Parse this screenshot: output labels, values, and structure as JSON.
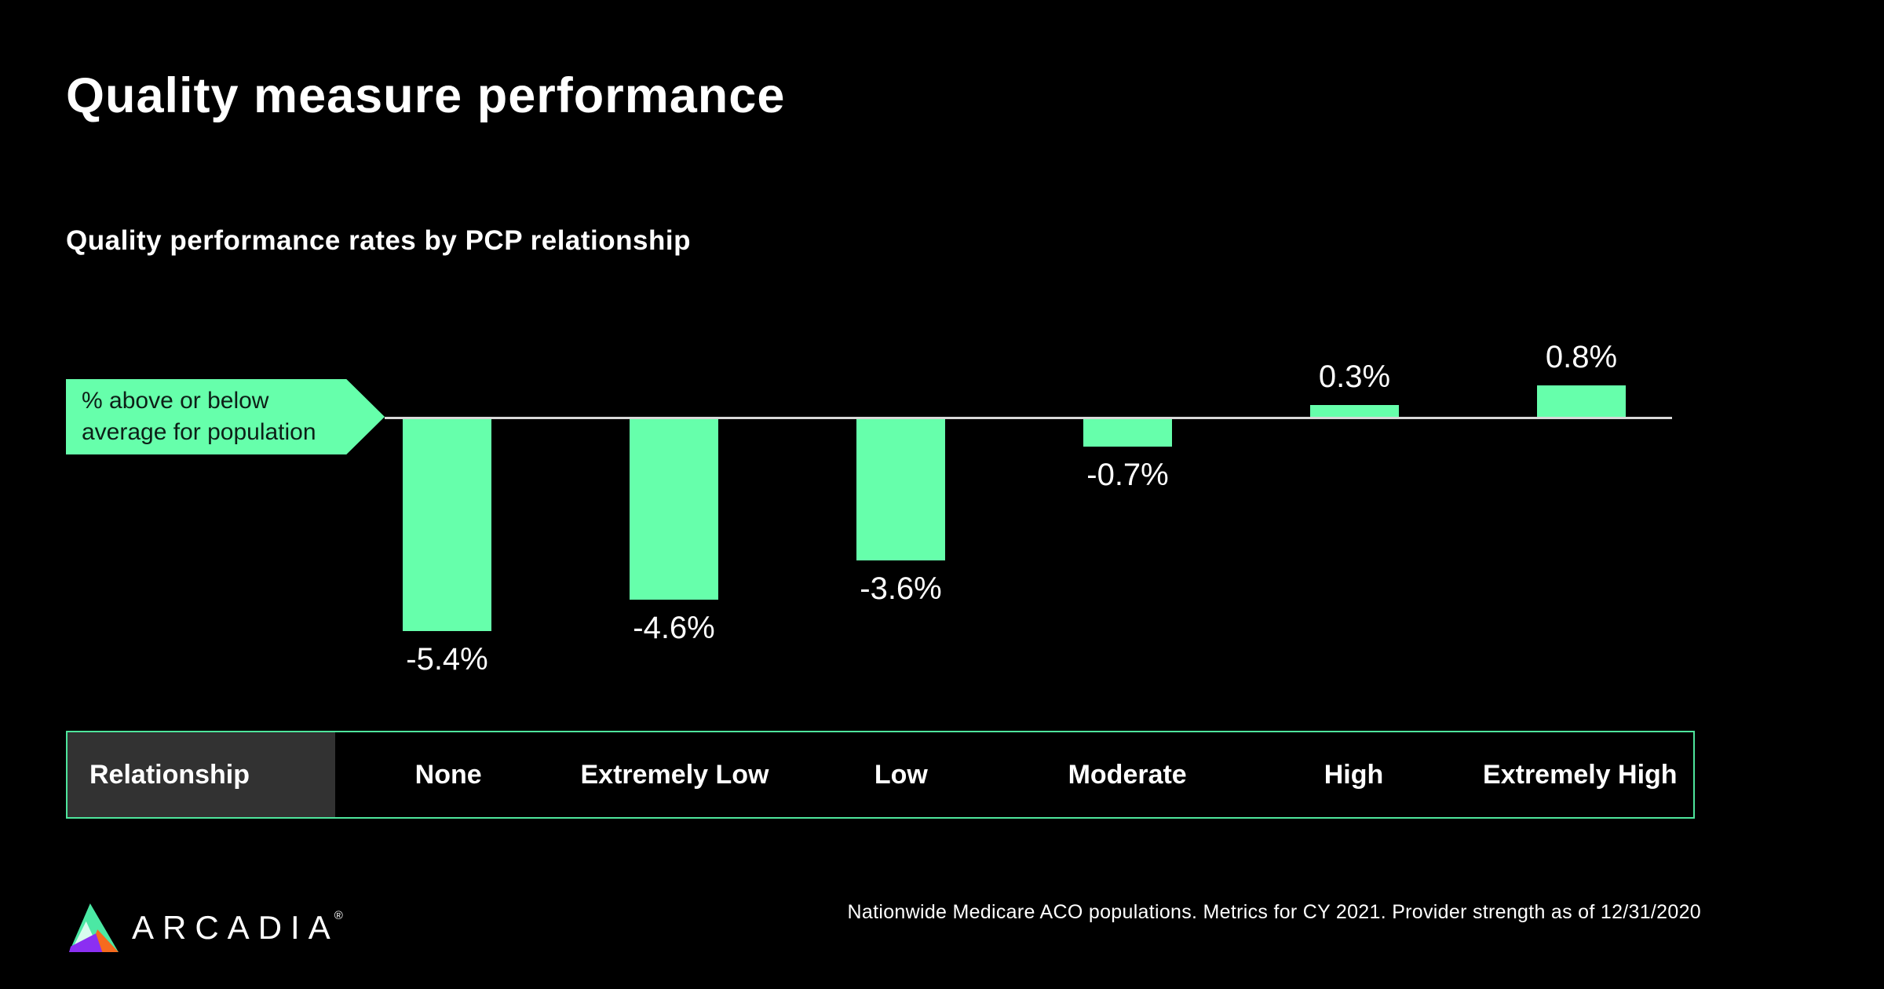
{
  "slide": {
    "title": "Quality measure performance",
    "subtitle": "Quality performance rates by PCP relationship"
  },
  "axis_tag": {
    "line1": "% above or below",
    "line2": "average for population"
  },
  "chart_data": {
    "type": "bar",
    "categories": [
      "None",
      "Extremely Low",
      "Low",
      "Moderate",
      "High",
      "Extremely High"
    ],
    "values": [
      -5.4,
      -4.6,
      -3.6,
      -0.7,
      0.3,
      0.8
    ],
    "labels": [
      "-5.4%",
      "-4.6%",
      "-3.6%",
      "-0.7%",
      "0.3%",
      "0.8%"
    ],
    "title": "Quality performance rates by PCP relationship",
    "xlabel": "",
    "ylabel": "% above or below average for population",
    "ylim": [
      -6,
      1.5
    ],
    "baseline": 0,
    "grid": false,
    "legend": "none",
    "unit": "%",
    "bar_color": "#66ffab"
  },
  "table": {
    "header": "Relationship",
    "columns": [
      "None",
      "Extremely Low",
      "Low",
      "Moderate",
      "High",
      "Extremely High"
    ]
  },
  "footer": {
    "note": "Nationwide Medicare ACO populations. Metrics for CY 2021. Provider strength as of 12/31/2020",
    "brand": "ARCADIA",
    "reg_mark": "®"
  },
  "colors": {
    "background": "#000000",
    "accent_green": "#66ffab",
    "table_border_green": "#4ee59c",
    "header_cell_bg": "#323232",
    "axis_line": "#d8d8d8",
    "text": "#ffffff",
    "tag_text": "#0d1f17",
    "logo_green": "#4be8a4",
    "logo_pale_mint": "#d9fbee",
    "logo_purple": "#8b2ff2",
    "logo_orange": "#f66a1e"
  }
}
